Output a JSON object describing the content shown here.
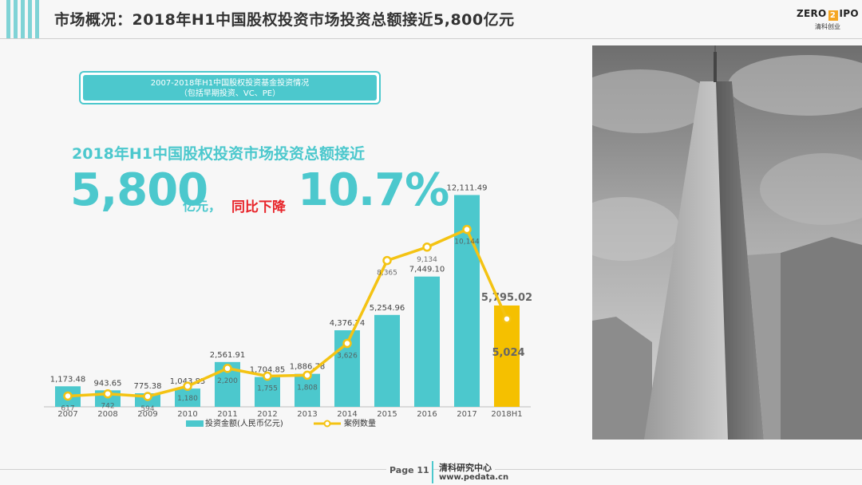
{
  "header": {
    "title": "市场概况：2018年H1中国股权投资市场投资总额接近5,800亿元",
    "logo_text_left": "ZERO",
    "logo_mark": "2",
    "logo_text_right": "IPO",
    "logo_sub": "清科创业"
  },
  "infobox": {
    "line1": "2007-2018年H1中国股权投资基金投资情况",
    "line2": "（包括早期投资、VC、PE）"
  },
  "headline": {
    "line1": "2018年H1中国股权投资市场投资总额接近",
    "big_number": "5,800",
    "unit": "亿元，",
    "decline_text": "同比下降",
    "percent": "10.7%"
  },
  "colors": {
    "teal": "#4cc8cd",
    "bar_highlight": "#f5c000",
    "line": "#f4c313",
    "red": "#e8242a"
  },
  "chart_data": {
    "type": "bar",
    "categories": [
      "2007",
      "2008",
      "2009",
      "2010",
      "2011",
      "2012",
      "2013",
      "2014",
      "2015",
      "2016",
      "2017",
      "2018H1"
    ],
    "series": [
      {
        "name": "投资金额(人民币亿元)",
        "type": "bar",
        "values": [
          1173.48,
          943.65,
          775.38,
          1043.83,
          2561.91,
          1704.85,
          1886.78,
          4376.74,
          5254.96,
          7449.1,
          12111.49,
          5795.02
        ],
        "labels": [
          "1,173.48",
          "943.65",
          "775.38",
          "1,043.83",
          "2,561.91",
          "1,704.85",
          "1,886.78",
          "4,376.74",
          "5,254.96",
          "7,449.10",
          "12,111.49",
          "5,795.02"
        ]
      },
      {
        "name": "案例数量",
        "type": "line",
        "values": [
          617,
          742,
          594,
          1180,
          2200,
          1755,
          1808,
          3626,
          8365,
          9134,
          10144,
          5024
        ],
        "labels": [
          "617",
          "742",
          "594",
          "1,180",
          "2,200",
          "1,755",
          "1,808",
          "3,626",
          "8,365",
          "9,134",
          "10,144",
          "5,024"
        ]
      }
    ],
    "highlight_category": "2018H1",
    "ylim": [
      0,
      13000
    ],
    "ylim_line": [
      0,
      13000
    ],
    "legend": "bottom",
    "grid": false
  },
  "footer": {
    "page_label": "Page 11",
    "org": "清科研究中心",
    "url": "www.pedata.cn"
  }
}
